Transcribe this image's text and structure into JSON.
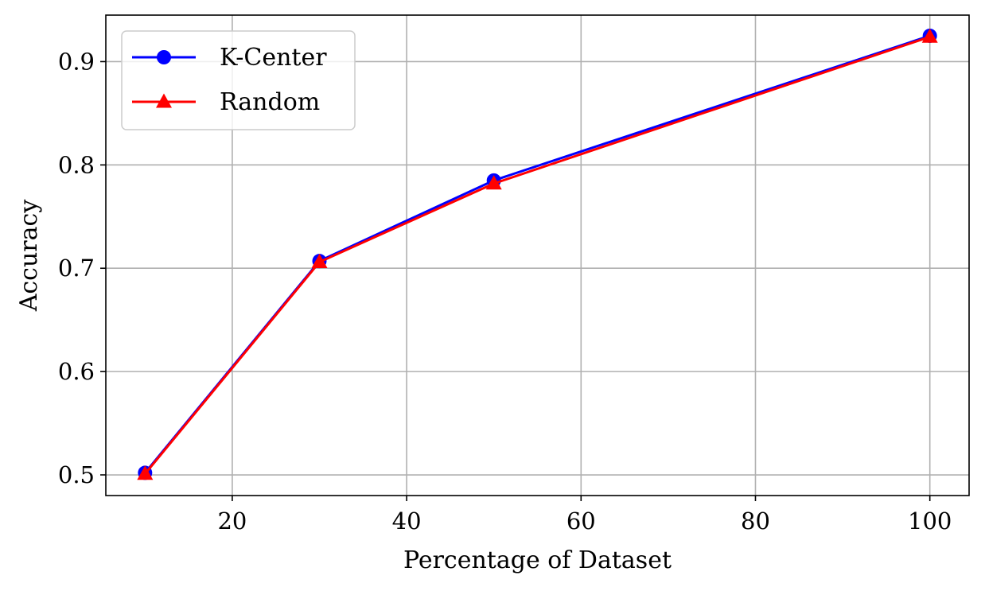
{
  "chart_data": {
    "type": "line",
    "xlabel": "Percentage of Dataset",
    "ylabel": "Accuracy",
    "xlim": [
      5.5,
      104.5
    ],
    "ylim": [
      0.48,
      0.945
    ],
    "xticks": [
      20,
      40,
      60,
      80,
      100
    ],
    "yticks": [
      0.5,
      0.6,
      0.7,
      0.8,
      0.9
    ],
    "xtick_labels": [
      "20",
      "40",
      "60",
      "80",
      "100"
    ],
    "ytick_labels": [
      "0.5",
      "0.6",
      "0.7",
      "0.8",
      "0.9"
    ],
    "grid": true,
    "legend_position": "upper-left",
    "x": [
      10,
      30,
      50,
      100
    ],
    "series": [
      {
        "name": "K-Center",
        "values": [
          0.502,
          0.707,
          0.785,
          0.925
        ],
        "color": "#0000ff",
        "marker": "circle"
      },
      {
        "name": "Random",
        "values": [
          0.501,
          0.706,
          0.782,
          0.924
        ],
        "color": "#ff0000",
        "marker": "triangle"
      }
    ]
  }
}
